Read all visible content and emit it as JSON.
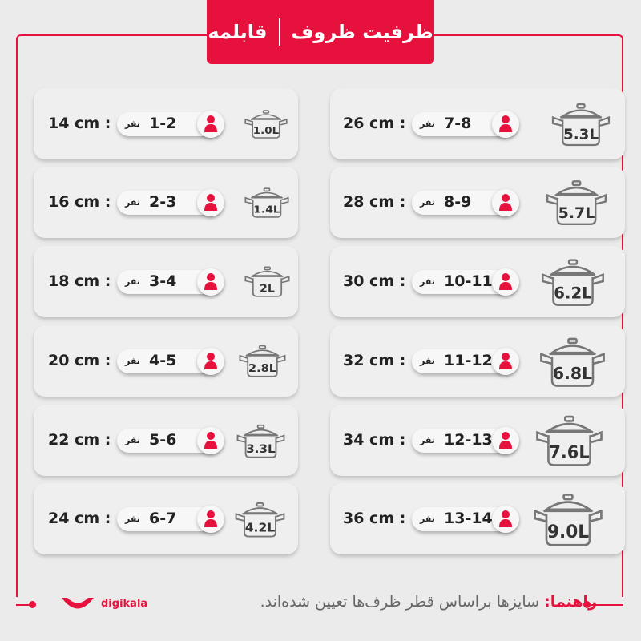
{
  "header": {
    "title_main": "ظرفیت ظروف",
    "title_sub": "قابلمه"
  },
  "unit_people": "نفر",
  "colors": {
    "accent": "#e6123d"
  },
  "left_column": [
    {
      "size": "14 cm :",
      "people": "1-2",
      "volume": "1.0L"
    },
    {
      "size": "16 cm :",
      "people": "2-3",
      "volume": "1.4L"
    },
    {
      "size": "18 cm :",
      "people": "3-4",
      "volume": "2L"
    },
    {
      "size": "20 cm :",
      "people": "4-5",
      "volume": "2.8L"
    },
    {
      "size": "22 cm :",
      "people": "5-6",
      "volume": "3.3L"
    },
    {
      "size": "24 cm :",
      "people": "6-7",
      "volume": "4.2L"
    }
  ],
  "right_column": [
    {
      "size": "26 cm :",
      "people": "7-8",
      "volume": "5.3L"
    },
    {
      "size": "28 cm :",
      "people": "8-9",
      "volume": "5.7L"
    },
    {
      "size": "30 cm :",
      "people": "10-11",
      "volume": "6.2L"
    },
    {
      "size": "32 cm :",
      "people": "11-12",
      "volume": "6.8L"
    },
    {
      "size": "34 cm :",
      "people": "12-13",
      "volume": "7.6L"
    },
    {
      "size": "36 cm :",
      "people": "13-14",
      "volume": "9.0L"
    }
  ],
  "footer": {
    "note_label": "راهنما:",
    "note_text": " سایزها براساس قطر ظرف‌ها تعیین شده‌اند.",
    "logo": "digikala"
  }
}
